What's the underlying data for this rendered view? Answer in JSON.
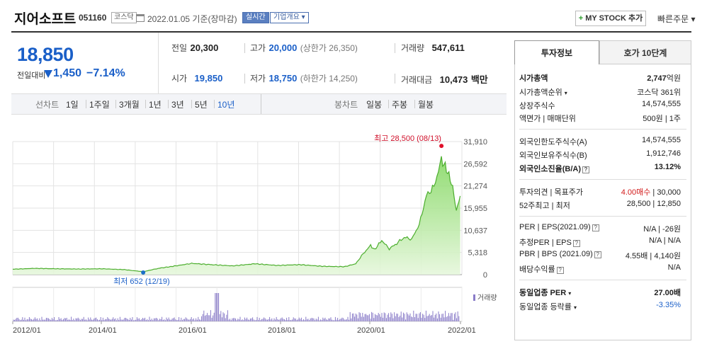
{
  "header": {
    "stock_name": "지어소프트",
    "stock_code": "051160",
    "market_tag": "코스닥",
    "date_text": "2022.01.05",
    "basis_text": "기준(장마감)",
    "realtime_label": "실시간",
    "company_label": "기업개요 ▾",
    "mystock_label": "MY STOCK 추가",
    "quick_order_label": "빠른주문 ▾"
  },
  "price": {
    "current": "18,850",
    "prev_label": "전일대비",
    "change": "1,450",
    "change_pct": "−7.14%"
  },
  "stats": {
    "prev_close_label": "전일",
    "prev_close": "20,300",
    "high_label": "고가",
    "high": "20,000",
    "upper_limit": "(상한가 26,350)",
    "volume_label": "거래량",
    "volume": "547,611",
    "open_label": "시가",
    "open": "19,850",
    "low_label": "저가",
    "low": "18,750",
    "lower_limit": "(하한가 14,250)",
    "amount_label": "거래대금",
    "amount": "10,473",
    "amount_unit": "백만"
  },
  "periods": {
    "line_label": "선차트",
    "line_items": [
      "1일",
      "1주일",
      "3개월",
      "1년",
      "3년",
      "5년",
      "10년"
    ],
    "selected": "10년",
    "candle_label": "봉차트",
    "candle_items": [
      "일봉",
      "주봉",
      "월봉"
    ]
  },
  "chart_data": {
    "type": "area",
    "y_ticks": [
      "31,910",
      "26,592",
      "21,274",
      "15,955",
      "10,637",
      "5,318",
      "0"
    ],
    "ylim": [
      0,
      31910
    ],
    "x_ticks": [
      "2012/01",
      "2014/01",
      "2016/01",
      "2018/01",
      "2020/01",
      "2022/01"
    ],
    "max_annotation": "최고 28,500 (08/13)",
    "min_annotation": "최저 652 (12/19)",
    "volume_label": "거래량",
    "series": [
      {
        "x": [
          "2012-01",
          "2012-07",
          "2013-01",
          "2013-07",
          "2014-01",
          "2014-07",
          "2014-12",
          "2015-04",
          "2015-08",
          "2016-01",
          "2016-06",
          "2016-12",
          "2017-06",
          "2017-12",
          "2018-06",
          "2018-12",
          "2019-06",
          "2019-09",
          "2019-11",
          "2020-01",
          "2020-02",
          "2020-04",
          "2020-06",
          "2020-08",
          "2020-10",
          "2020-12",
          "2021-02",
          "2021-04",
          "2021-06",
          "2021-08",
          "2021-09",
          "2021-10",
          "2021-11",
          "2021-12",
          "2022-01"
        ],
        "values": [
          1300,
          1500,
          1400,
          1350,
          1400,
          1200,
          700,
          1500,
          2000,
          2700,
          2400,
          2100,
          2600,
          2200,
          2400,
          2000,
          1900,
          2600,
          5000,
          7000,
          6000,
          8200,
          6200,
          7500,
          9000,
          8500,
          12000,
          19000,
          21000,
          27500,
          26000,
          24000,
          21000,
          15500,
          18850
        ]
      }
    ],
    "max_point": {
      "x": "2021-08",
      "value": 28500
    },
    "min_point": {
      "x": "2014-12",
      "value": 652
    }
  },
  "invest": {
    "tab_on": "투자정보",
    "tab_off": "호가 10단계",
    "market_cap_label": "시가총액",
    "market_cap": "2,747",
    "market_cap_unit": "억원",
    "cap_rank_label": "시가총액순위",
    "cap_rank": "코스닥 361위",
    "shares_label": "상장주식수",
    "shares": "14,574,555",
    "face_label": "액면가",
    "unit_label": "매매단위",
    "face_val": "500원",
    "unit_val": "1주",
    "foreign_limit_label": "외국인한도주식수(A)",
    "foreign_limit": "14,574,555",
    "foreign_hold_label": "외국인보유주식수(B)",
    "foreign_hold": "1,912,746",
    "foreign_rate_label": "외국인소진율(B/A)",
    "foreign_rate": "13.12%",
    "opinion_label": "투자의견",
    "target_label": "목표주가",
    "opinion": "4.00매수",
    "target": "30,000",
    "w52_label": "52주최고",
    "w52_low_label": "최저",
    "w52_high": "28,500",
    "w52_low": "12,850",
    "per_label": "PER",
    "eps_label": "EPS(2021.09)",
    "per": "N/A",
    "eps": "-26원",
    "est_per_label": "추정PER",
    "est_eps_label": "EPS",
    "est_per": "N/A",
    "est_eps": "N/A",
    "pbr_label": "PBR",
    "bps_label": "BPS (2021.09)",
    "pbr": "4.55배",
    "bps": "4,140원",
    "div_label": "배당수익률",
    "div": "N/A",
    "ind_per_label": "동일업종 PER",
    "ind_per": "27.00배",
    "ind_rate_label": "동일업종 등락률",
    "ind_rate": "-3.35%"
  }
}
